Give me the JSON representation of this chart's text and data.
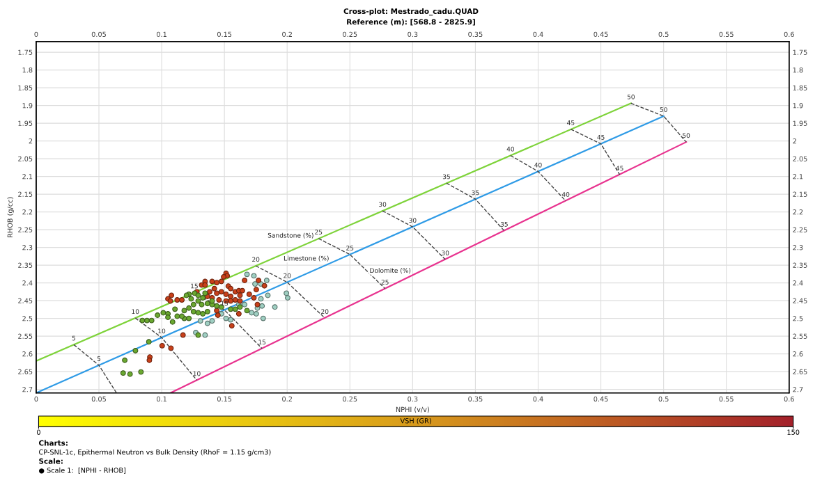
{
  "chart_data": {
    "type": "scatter",
    "title": "Cross-plot: Mestrado_cadu.QUAD",
    "subtitle": "Reference (m): [568.8 - 2825.9]",
    "xlabel": "NPHI (v/v)",
    "ylabel": "RHOB (g/cc)",
    "clabel": "VSH (GR)",
    "xlim": [
      0,
      0.6
    ],
    "ylim": [
      2.71,
      1.72
    ],
    "x2lim": [
      0,
      0.6
    ],
    "y2lim": [
      2.71,
      1.72
    ],
    "xticks": [
      0,
      0.05,
      0.1,
      0.15,
      0.2,
      0.25,
      0.3,
      0.35,
      0.4,
      0.45,
      0.5,
      0.55,
      0.6
    ],
    "x2ticks": [
      0,
      0.05,
      0.1,
      0.15,
      0.2,
      0.25,
      0.3,
      0.35,
      0.4,
      0.45,
      0.5,
      0.55,
      0.6
    ],
    "yticks": [
      1.75,
      1.8,
      1.85,
      1.9,
      1.95,
      2,
      2.05,
      2.1,
      2.15,
      2.2,
      2.25,
      2.3,
      2.35,
      2.4,
      2.45,
      2.5,
      2.55,
      2.6,
      2.65,
      2.7
    ],
    "y2ticks": [
      1.75,
      1.8,
      1.85,
      1.9,
      1.95,
      2,
      2.05,
      2.1,
      2.15,
      2.2,
      2.25,
      2.3,
      2.35,
      2.4,
      2.45,
      2.5,
      2.55,
      2.6,
      2.65,
      2.7
    ],
    "clim": [
      0,
      150
    ],
    "cticks": [
      0,
      150
    ],
    "grid": true,
    "marker": "circle",
    "series": [
      {
        "type": "line",
        "name": "Sandstone (%)",
        "marker": "none",
        "color": "#7ed33a",
        "x": [
          0,
          0.474
        ],
        "values": [
          2.62,
          1.894
        ]
      },
      {
        "type": "line",
        "name": "Limestone (%)",
        "marker": "none",
        "color": "#2f9be6",
        "x": [
          0,
          0.5
        ],
        "values": [
          2.71,
          1.93
        ]
      },
      {
        "type": "line",
        "name": "Dolomite (%)",
        "marker": "none",
        "color": "#e8338f",
        "x": [
          0.107,
          0.518
        ],
        "values": [
          2.71,
          2.003
        ]
      },
      {
        "type": "line",
        "color": "#444444",
        "line_style": "dashed",
        "marker": "none",
        "x": [
          0.03,
          0.05,
          0.064
        ],
        "values": [
          2.574,
          2.632,
          2.71
        ]
      },
      {
        "type": "line",
        "color": "#444444",
        "line_style": "dashed",
        "marker": "none",
        "x": [
          0.079,
          0.1,
          0.128
        ],
        "values": [
          2.499,
          2.554,
          2.674
        ]
      },
      {
        "type": "line",
        "color": "#444444",
        "line_style": "dashed",
        "marker": "none",
        "x": [
          0.126,
          0.15,
          0.18
        ],
        "values": [
          2.427,
          2.476,
          2.585
        ]
      },
      {
        "type": "line",
        "color": "#444444",
        "line_style": "dashed",
        "marker": "none",
        "x": [
          0.175,
          0.2,
          0.23
        ],
        "values": [
          2.352,
          2.398,
          2.499
        ]
      },
      {
        "type": "line",
        "color": "#444444",
        "line_style": "dashed",
        "marker": "none",
        "x": [
          0.225,
          0.25,
          0.278
        ],
        "values": [
          2.275,
          2.32,
          2.416
        ]
      },
      {
        "type": "line",
        "color": "#444444",
        "line_style": "dashed",
        "marker": "none",
        "x": [
          0.276,
          0.3,
          0.326
        ],
        "values": [
          2.197,
          2.242,
          2.334
        ]
      },
      {
        "type": "line",
        "color": "#444444",
        "line_style": "dashed",
        "marker": "none",
        "x": [
          0.327,
          0.35,
          0.373
        ],
        "values": [
          2.119,
          2.164,
          2.253
        ]
      },
      {
        "type": "line",
        "color": "#444444",
        "line_style": "dashed",
        "marker": "none",
        "x": [
          0.378,
          0.4,
          0.422
        ],
        "values": [
          2.041,
          2.086,
          2.169
        ]
      },
      {
        "type": "line",
        "color": "#444444",
        "line_style": "dashed",
        "marker": "none",
        "x": [
          0.426,
          0.45,
          0.465
        ],
        "values": [
          1.967,
          2.008,
          2.095
        ]
      },
      {
        "type": "line",
        "color": "#444444",
        "line_style": "dashed",
        "marker": "none",
        "x": [
          0.474,
          0.5,
          0.518
        ],
        "values": [
          1.894,
          1.93,
          2.003
        ]
      },
      {
        "color": "#9fcfc2",
        "x": [
          0.168,
          0.1735,
          0.1837,
          0.1791,
          0.1744,
          0.1846,
          0.1791,
          0.18,
          0.1763,
          0.1717,
          0.1754,
          0.1809,
          0.1902,
          0.1994,
          0.2004,
          0.1513,
          0.155,
          0.1365,
          0.1402,
          0.1272,
          0.1346,
          0.1309,
          0.1661,
          0.1615,
          0.1476
        ],
        "values": [
          2.376,
          2.38,
          2.393,
          2.403,
          2.403,
          2.435,
          2.445,
          2.465,
          2.471,
          2.484,
          2.487,
          2.5,
          2.468,
          2.429,
          2.442,
          2.5,
          2.504,
          2.514,
          2.507,
          2.54,
          2.547,
          2.507,
          2.461,
          2.461,
          2.487
        ]
      },
      {
        "color": "#c8401a",
        "x": [
          0.1513,
          0.1522,
          0.1494,
          0.1476,
          0.1439,
          0.1346,
          0.1319,
          0.1402,
          0.1531,
          0.155,
          0.142,
          0.1383,
          0.1439,
          0.1476,
          0.1513,
          0.155,
          0.1587,
          0.1615,
          0.1661,
          0.1772,
          0.1819,
          0.1754,
          0.1643,
          0.1698,
          0.1624,
          0.1624,
          0.155,
          0.1513,
          0.1457,
          0.1402,
          0.1365,
          0.1078,
          0.105,
          0.1124,
          0.1161,
          0.1069,
          0.1735,
          0.1763,
          0.1615,
          0.1448,
          0.1439,
          0.1559,
          0.117,
          0.1004,
          0.1074,
          0.0906,
          0.0902,
          0.1346,
          0.1281,
          0.1587
        ],
        "values": [
          2.373,
          2.38,
          2.383,
          2.396,
          2.399,
          2.396,
          2.406,
          2.396,
          2.409,
          2.416,
          2.416,
          2.425,
          2.429,
          2.425,
          2.432,
          2.438,
          2.425,
          2.422,
          2.393,
          2.393,
          2.408,
          2.419,
          2.422,
          2.432,
          2.435,
          2.451,
          2.451,
          2.451,
          2.448,
          2.442,
          2.438,
          2.435,
          2.445,
          2.448,
          2.448,
          2.451,
          2.442,
          2.461,
          2.487,
          2.491,
          2.478,
          2.521,
          2.547,
          2.577,
          2.584,
          2.609,
          2.618,
          2.406,
          2.425,
          2.448
        ]
      },
      {
        "color": "#6aa830",
        "x": [
          0.0846,
          0.0883,
          0.092,
          0.0967,
          0.1013,
          0.105,
          0.1106,
          0.118,
          0.1217,
          0.1254,
          0.1291,
          0.1328,
          0.1217,
          0.1263,
          0.1291,
          0.1346,
          0.1319,
          0.1365,
          0.1402,
          0.1439,
          0.1476,
          0.1254,
          0.1291,
          0.118,
          0.1087,
          0.1124,
          0.105,
          0.1328,
          0.1365,
          0.155,
          0.1587,
          0.1624,
          0.168,
          0.1235,
          0.1198,
          0.1402,
          0.1291,
          0.0898,
          0.0791,
          0.0706,
          0.0693,
          0.0748,
          0.0835,
          0.1161,
          0.1217
        ],
        "values": [
          2.506,
          2.506,
          2.506,
          2.491,
          2.484,
          2.487,
          2.474,
          2.478,
          2.471,
          2.461,
          2.451,
          2.442,
          2.432,
          2.429,
          2.435,
          2.429,
          2.461,
          2.458,
          2.461,
          2.465,
          2.468,
          2.481,
          2.484,
          2.5,
          2.51,
          2.494,
          2.497,
          2.487,
          2.481,
          2.474,
          2.474,
          2.468,
          2.478,
          2.445,
          2.435,
          2.451,
          2.547,
          2.566,
          2.591,
          2.618,
          2.654,
          2.657,
          2.651,
          2.494,
          2.5
        ]
      }
    ],
    "annotations": [
      {
        "text": "5",
        "x": 0.03,
        "y": 2.574
      },
      {
        "text": "10",
        "x": 0.079,
        "y": 2.499
      },
      {
        "text": "15",
        "x": 0.126,
        "y": 2.427
      },
      {
        "text": "20",
        "x": 0.175,
        "y": 2.352
      },
      {
        "text": "25",
        "x": 0.225,
        "y": 2.275
      },
      {
        "text": "30",
        "x": 0.276,
        "y": 2.197
      },
      {
        "text": "35",
        "x": 0.327,
        "y": 2.119
      },
      {
        "text": "40",
        "x": 0.378,
        "y": 2.041
      },
      {
        "text": "45",
        "x": 0.426,
        "y": 1.967
      },
      {
        "text": "50",
        "x": 0.474,
        "y": 1.894
      },
      {
        "text": "5",
        "x": 0.05,
        "y": 2.632
      },
      {
        "text": "10",
        "x": 0.1,
        "y": 2.554
      },
      {
        "text": "15",
        "x": 0.15,
        "y": 2.476
      },
      {
        "text": "20",
        "x": 0.2,
        "y": 2.398
      },
      {
        "text": "25",
        "x": 0.25,
        "y": 2.32
      },
      {
        "text": "30",
        "x": 0.3,
        "y": 2.242
      },
      {
        "text": "35",
        "x": 0.35,
        "y": 2.164
      },
      {
        "text": "40",
        "x": 0.4,
        "y": 2.086
      },
      {
        "text": "45",
        "x": 0.45,
        "y": 2.008
      },
      {
        "text": "50",
        "x": 0.5,
        "y": 1.93
      },
      {
        "text": "10",
        "x": 0.128,
        "y": 2.674
      },
      {
        "text": "15",
        "x": 0.18,
        "y": 2.585
      },
      {
        "text": "20",
        "x": 0.23,
        "y": 2.499
      },
      {
        "text": "25",
        "x": 0.278,
        "y": 2.416
      },
      {
        "text": "30",
        "x": 0.326,
        "y": 2.334
      },
      {
        "text": "35",
        "x": 0.373,
        "y": 2.253
      },
      {
        "text": "40",
        "x": 0.422,
        "y": 2.169
      },
      {
        "text": "45",
        "x": 0.465,
        "y": 2.095
      },
      {
        "text": "50",
        "x": 0.518,
        "y": 2.003
      },
      "Charts:",
      "CP-SNL-1c, Epithermal Neutron vs Bulk Density (RhoF = 1.15 g/cm3)",
      "Scale:",
      "● Scale 1:  [NPHI - RHOB]"
    ]
  }
}
